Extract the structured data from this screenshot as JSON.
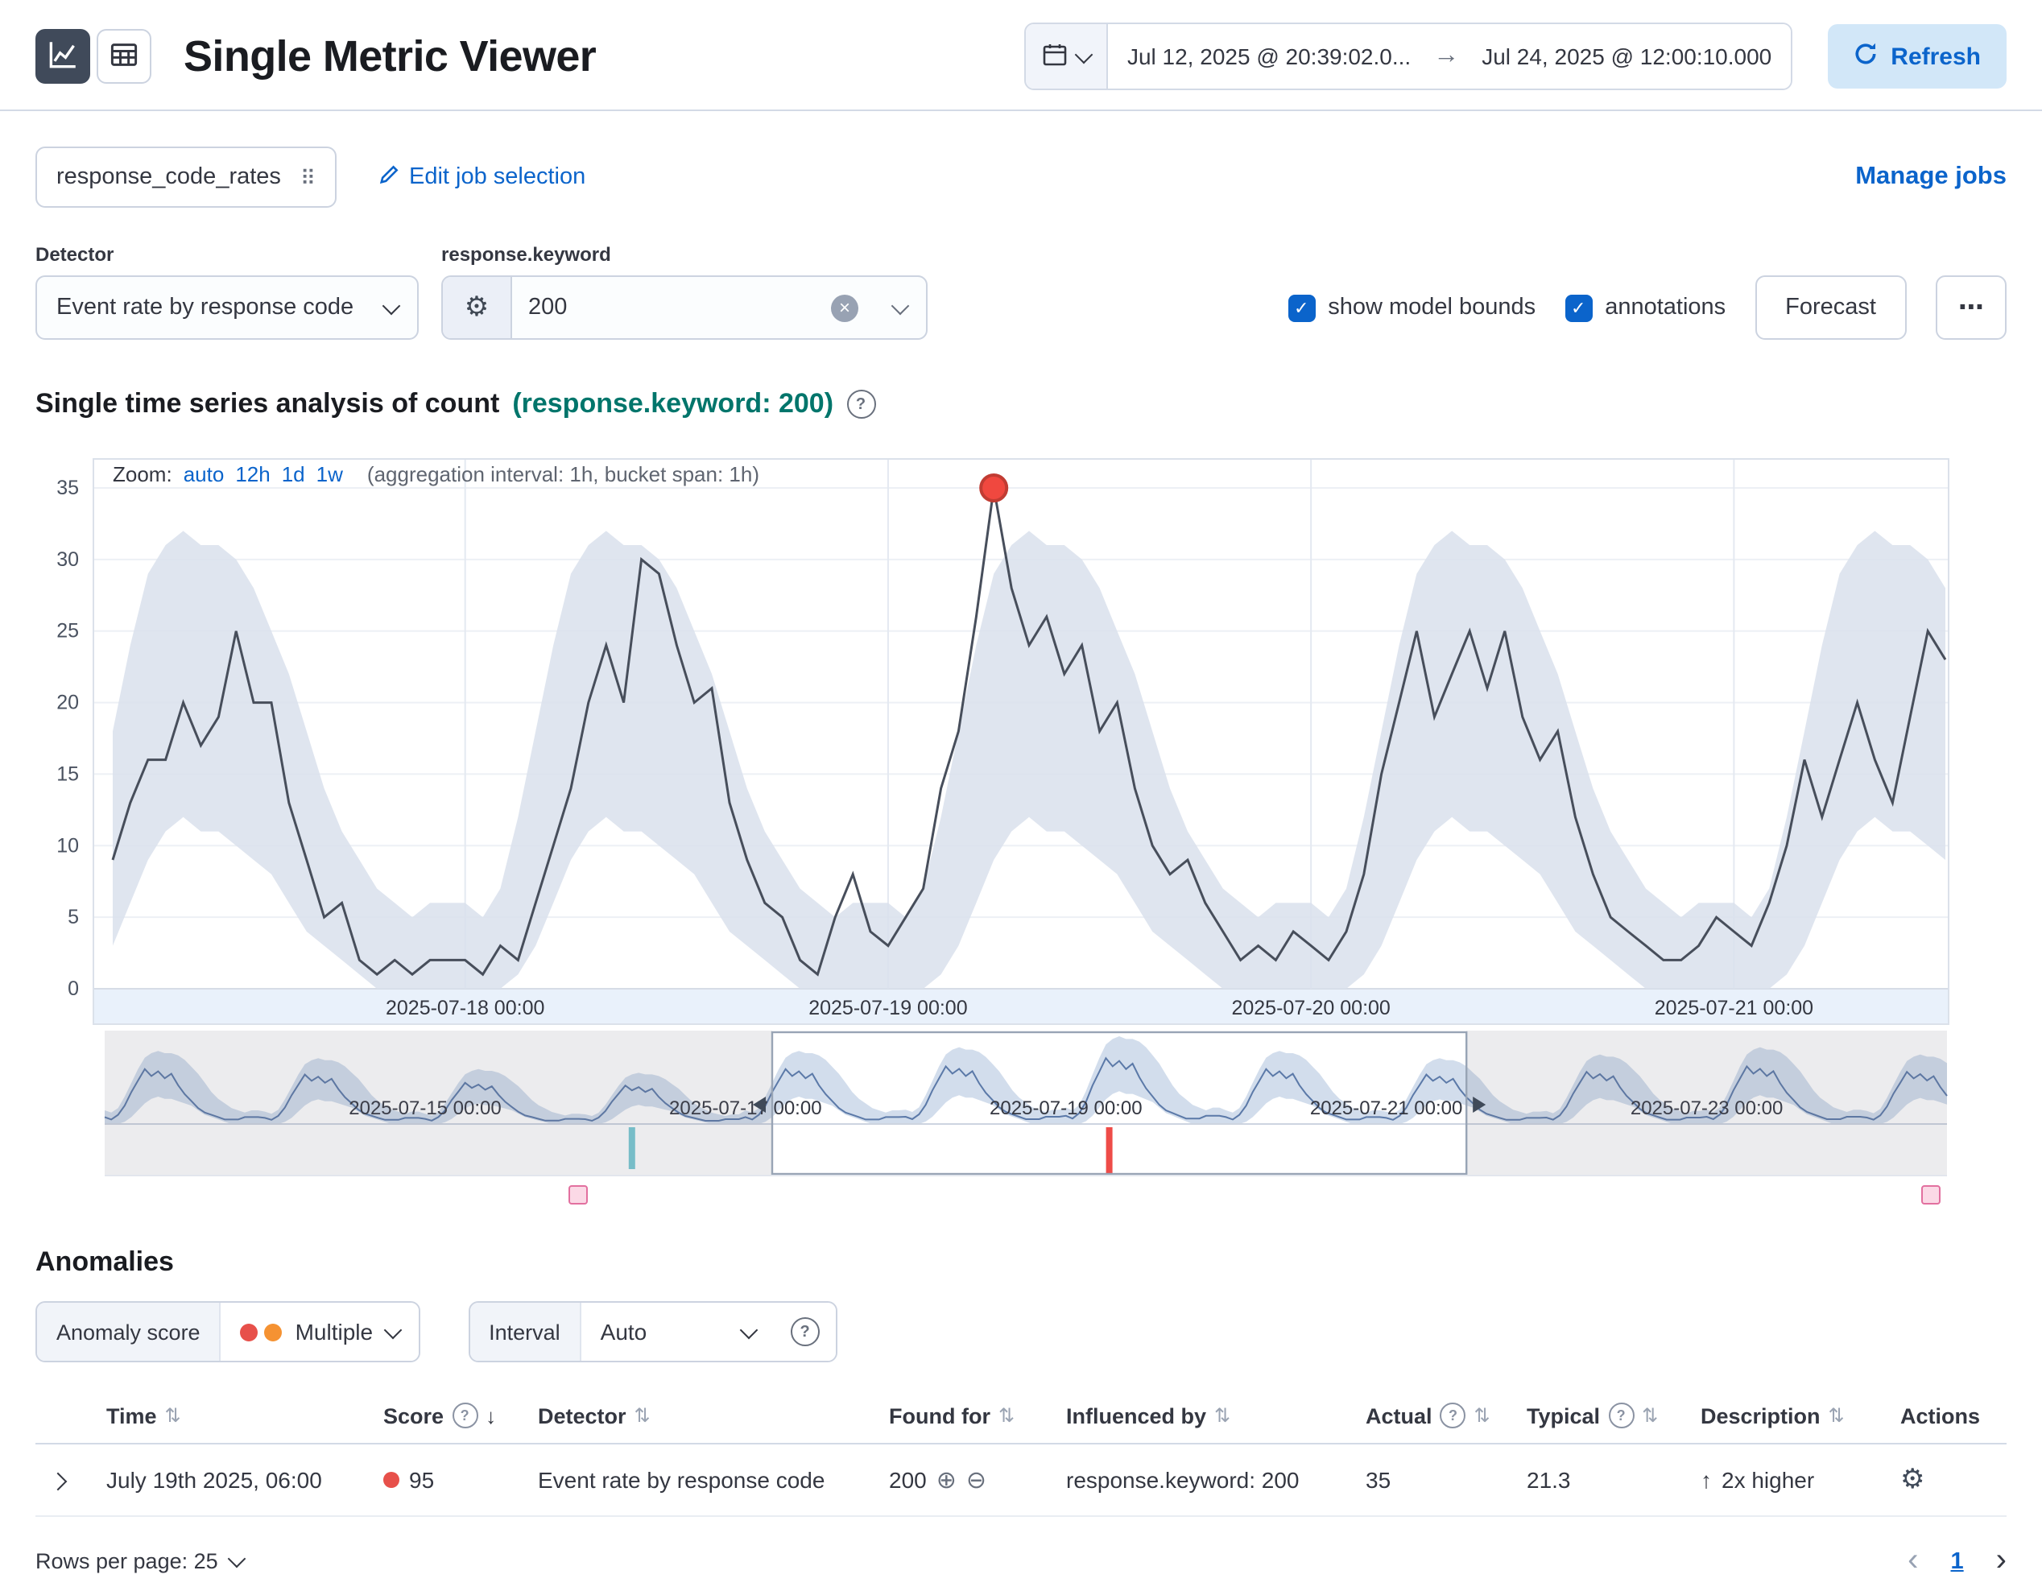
{
  "colors": {
    "primary": "#0b64cb",
    "success_text": "#00756b",
    "critical": "#e7504a",
    "warning": "#f59232"
  },
  "icons": {
    "refresh": "refresh-icon",
    "sort": "⇅",
    "sort_desc": "↓",
    "help": "?",
    "arrow_right": "→",
    "filter_in": "⊕",
    "filter_out": "⊖",
    "arrow_up": "↑",
    "dots": "⋯",
    "prev": "‹",
    "next": "›",
    "check": "✓",
    "clear": "×",
    "grip": "⠿",
    "gear": "⚙"
  },
  "header": {
    "title": "Single Metric Viewer",
    "date_start": "Jul 12, 2025 @ 20:39:02.0...",
    "date_end": "Jul 24, 2025 @ 12:00:10.000",
    "refresh_label": "Refresh"
  },
  "jobs": {
    "selected_job": "response_code_rates",
    "edit_link": "Edit job selection",
    "manage_link": "Manage jobs"
  },
  "detector": {
    "label": "Detector",
    "value": "Event rate by response code",
    "keyword_label": "response.keyword",
    "keyword_value": "200"
  },
  "options": {
    "model_bounds_label": "show model bounds",
    "annotations_label": "annotations",
    "forecast_label": "Forecast"
  },
  "analysis": {
    "title": "Single time series analysis of count",
    "highlight": "(response.keyword: 200)"
  },
  "chart_data": {
    "main": {
      "type": "line",
      "zoom_label": "Zoom:",
      "zoom_options": [
        "auto",
        "12h",
        "1d",
        "1w"
      ],
      "aggregation_note": "(aggregation interval: 1h, bucket span: 1h)",
      "ylim": [
        0,
        35
      ],
      "y_ticks": [
        0,
        5,
        10,
        15,
        20,
        25,
        30,
        35
      ],
      "x_ticks": [
        {
          "label": "2025-07-18 00:00",
          "hour": 20
        },
        {
          "label": "2025-07-19 00:00",
          "hour": 44
        },
        {
          "label": "2025-07-20 00:00",
          "hour": 68
        },
        {
          "label": "2025-07-21 00:00",
          "hour": 92
        }
      ],
      "start_hour_of_day": 4,
      "values": [
        9,
        13,
        16,
        16,
        20,
        17,
        19,
        25,
        20,
        20,
        13,
        9,
        5,
        6,
        2,
        1,
        2,
        1,
        2,
        2,
        2,
        1,
        3,
        2,
        6,
        10,
        14,
        20,
        24,
        20,
        30,
        29,
        24,
        20,
        21,
        13,
        9,
        6,
        5,
        2,
        1,
        5,
        8,
        4,
        3,
        5,
        7,
        14,
        18,
        26,
        35,
        28,
        24,
        26,
        22,
        24,
        18,
        20,
        14,
        10,
        8,
        9,
        6,
        4,
        2,
        3,
        2,
        4,
        3,
        2,
        4,
        8,
        15,
        20,
        25,
        19,
        22,
        25,
        21,
        25,
        19,
        16,
        18,
        12,
        8,
        5,
        4,
        3,
        2,
        2,
        3,
        5,
        4,
        3,
        6,
        10,
        16,
        12,
        16,
        20,
        16,
        13,
        19,
        25,
        23
      ],
      "bounds_upper_by_hour": [
        6,
        5,
        7,
        12,
        18,
        24,
        29,
        31,
        32,
        31,
        31,
        30,
        28,
        25,
        22,
        18,
        14,
        11,
        9,
        7,
        6,
        5,
        6,
        6
      ],
      "bounds_lower_by_hour": [
        0,
        0,
        0,
        1,
        3,
        6,
        9,
        11,
        12,
        11,
        11,
        10,
        9,
        8,
        6,
        4,
        3,
        2,
        1,
        0,
        0,
        0,
        0,
        0
      ],
      "anomaly": {
        "index": 50,
        "value": 35
      },
      "colors": {
        "line": "#474e5b",
        "bounds": "#d9e0ec",
        "anomaly_fill": "#f0483f",
        "anomaly_stroke": "#c13c33",
        "grid": "#edf0f5",
        "axis_band": "#e9f1fb",
        "border": "#dbe1ea"
      }
    },
    "context": {
      "type": "area",
      "total_hours": 276,
      "day_values": [
        3,
        2,
        4,
        8,
        14,
        19,
        24,
        21,
        23,
        20,
        22,
        17,
        13,
        10,
        7,
        5,
        4,
        3,
        2,
        2,
        2,
        3,
        3,
        3
      ],
      "day_upper": [
        6,
        5,
        7,
        12,
        18,
        24,
        29,
        31,
        32,
        31,
        31,
        30,
        28,
        25,
        22,
        18,
        14,
        11,
        9,
        7,
        6,
        5,
        6,
        6
      ],
      "day_lower": [
        0,
        0,
        0,
        1,
        3,
        6,
        9,
        11,
        12,
        11,
        11,
        10,
        9,
        8,
        6,
        4,
        3,
        2,
        1,
        0,
        0,
        0,
        0,
        0
      ],
      "day_amplitudes": [
        1.0,
        0.9,
        0.75,
        0.7,
        1.0,
        1.05,
        1.2,
        1.0,
        0.9,
        0.95,
        1.05,
        0.95
      ],
      "x_ticks": [
        {
          "label": "2025-07-15 00:00",
          "hour": 48
        },
        {
          "label": "2025-07-17 00:00",
          "hour": 96
        },
        {
          "label": "2025-07-19 00:00",
          "hour": 144
        },
        {
          "label": "2025-07-21 00:00",
          "hour": 192
        },
        {
          "label": "2025-07-23 00:00",
          "hour": 240
        }
      ],
      "selection": {
        "start_hour": 100,
        "end_hour": 204
      },
      "markers": [
        {
          "hour": 79,
          "color": "#79c9d4",
          "type": "annotation"
        },
        {
          "hour": 150.5,
          "color": "#ee4c48",
          "type": "anomaly"
        }
      ],
      "flags": [
        {
          "fraction": 0.275
        },
        {
          "fraction": 0.962
        }
      ],
      "colors": {
        "band": "#cdd9ea",
        "line": "#5b79a8",
        "mask": "#69707d",
        "selection_stroke": "#98a4b5",
        "baseline": "#cdd4e0"
      }
    }
  },
  "anomalies": {
    "heading": "Anomalies",
    "score_filter_label": "Anomaly score",
    "score_filter_value": "Multiple",
    "interval_label": "Interval",
    "interval_value": "Auto",
    "columns": [
      {
        "label": "Time"
      },
      {
        "label": "Score"
      },
      {
        "label": "Detector"
      },
      {
        "label": "Found for"
      },
      {
        "label": "Influenced by"
      },
      {
        "label": "Actual"
      },
      {
        "label": "Typical"
      },
      {
        "label": "Description"
      },
      {
        "label": "Actions"
      }
    ],
    "rows": [
      {
        "time": "July 19th 2025, 06:00",
        "score": "95",
        "detector": "Event rate by response code",
        "found_for": "200",
        "influenced_by": "response.keyword: 200",
        "actual": "35",
        "typical": "21.3",
        "description": "2x higher"
      }
    ],
    "rows_per_page_label": "Rows per page: 25",
    "page": "1"
  }
}
